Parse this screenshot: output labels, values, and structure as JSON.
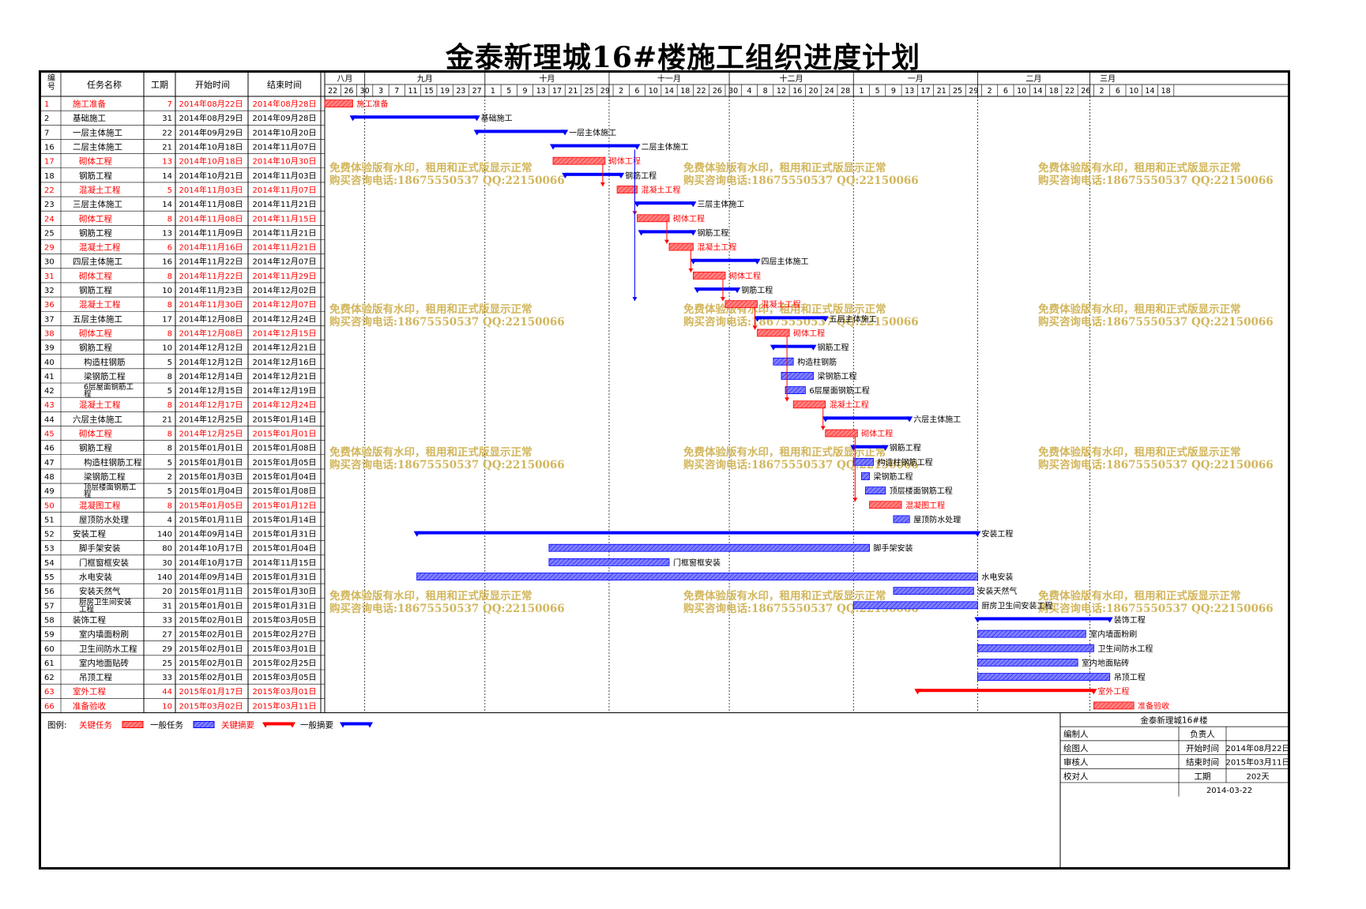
{
  "title": "金泰新理城16#楼施工组织进度计划",
  "header": {
    "no": "编号",
    "name": "任务名称",
    "dur": "工期",
    "start": "开始时间",
    "end": "结束时间"
  },
  "colors": {
    "critical": "#ff0000",
    "normal": "#0000ff",
    "critical_fill": "#ff8080",
    "normal_fill": "#8080ff",
    "watermark": "#d2b65c"
  },
  "timeline": {
    "months": [
      "八月",
      "九月",
      "十月",
      "十一月",
      "十二月",
      "一月",
      "二月",
      "三月"
    ],
    "day_ticks": [
      "22",
      "26",
      "30",
      "3",
      "7",
      "11",
      "15",
      "19",
      "23",
      "27",
      "1",
      "5",
      "9",
      "13",
      "17",
      "21",
      "25",
      "29",
      "2",
      "6",
      "10",
      "14",
      "18",
      "22",
      "26",
      "30",
      "4",
      "8",
      "12",
      "16",
      "20",
      "24",
      "28",
      "1",
      "5",
      "9",
      "13",
      "17",
      "21",
      "25",
      "29",
      "2",
      "6",
      "10",
      "14",
      "18",
      "22",
      "26",
      "2",
      "6",
      "10",
      "14",
      "18"
    ]
  },
  "chart_data": {
    "type": "gantt",
    "title": "金泰新理城16#楼施工组织进度计划",
    "columns": [
      "编号",
      "任务名称",
      "工期",
      "开始时间",
      "结束时间"
    ],
    "tasks": [
      {
        "id": "1",
        "name": "施工准备",
        "dur": "7",
        "start": "2014年08月22日",
        "end": "2014年08月28日",
        "kind": "critical-task",
        "label": "施工准备"
      },
      {
        "id": "2",
        "name": "基础施工",
        "dur": "31",
        "start": "2014年08月29日",
        "end": "2014年09月28日",
        "kind": "summary",
        "label": "基础施工"
      },
      {
        "id": "7",
        "name": "一层主体施工",
        "dur": "22",
        "start": "2014年09月29日",
        "end": "2014年10月20日",
        "kind": "summary",
        "label": "一层主体施工"
      },
      {
        "id": "16",
        "name": "二层主体施工",
        "dur": "21",
        "start": "2014年10月18日",
        "end": "2014年11月07日",
        "kind": "summary",
        "label": "二层主体施工"
      },
      {
        "id": "17",
        "name": "砌体工程",
        "dur": "13",
        "start": "2014年10月18日",
        "end": "2014年10月30日",
        "kind": "critical-task",
        "label": "砌体工程",
        "indent": true
      },
      {
        "id": "18",
        "name": "钢筋工程",
        "dur": "14",
        "start": "2014年10月21日",
        "end": "2014年11月03日",
        "kind": "summary",
        "label": "钢筋工程",
        "indent": true
      },
      {
        "id": "22",
        "name": "混凝土工程",
        "dur": "5",
        "start": "2014年11月03日",
        "end": "2014年11月07日",
        "kind": "critical-task",
        "label": "混凝土工程",
        "indent": true
      },
      {
        "id": "23",
        "name": "三层主体施工",
        "dur": "14",
        "start": "2014年11月08日",
        "end": "2014年11月21日",
        "kind": "summary",
        "label": "三层主体施工"
      },
      {
        "id": "24",
        "name": "砌体工程",
        "dur": "8",
        "start": "2014年11月08日",
        "end": "2014年11月15日",
        "kind": "critical-task",
        "label": "砌体工程",
        "indent": true
      },
      {
        "id": "25",
        "name": "钢筋工程",
        "dur": "13",
        "start": "2014年11月09日",
        "end": "2014年11月21日",
        "kind": "summary",
        "label": "钢筋工程",
        "indent": true
      },
      {
        "id": "29",
        "name": "混凝土工程",
        "dur": "6",
        "start": "2014年11月16日",
        "end": "2014年11月21日",
        "kind": "critical-task",
        "label": "混凝土工程",
        "indent": true
      },
      {
        "id": "30",
        "name": "四层主体施工",
        "dur": "16",
        "start": "2014年11月22日",
        "end": "2014年12月07日",
        "kind": "summary",
        "label": "四层主体施工"
      },
      {
        "id": "31",
        "name": "砌体工程",
        "dur": "8",
        "start": "2014年11月22日",
        "end": "2014年11月29日",
        "kind": "critical-task",
        "label": "砌体工程",
        "indent": true
      },
      {
        "id": "32",
        "name": "钢筋工程",
        "dur": "10",
        "start": "2014年11月23日",
        "end": "2014年12月02日",
        "kind": "summary",
        "label": "钢筋工程",
        "indent": true
      },
      {
        "id": "36",
        "name": "混凝土工程",
        "dur": "8",
        "start": "2014年11月30日",
        "end": "2014年12月07日",
        "kind": "critical-task",
        "label": "混凝土工程",
        "indent": true
      },
      {
        "id": "37",
        "name": "五层主体施工",
        "dur": "17",
        "start": "2014年12月08日",
        "end": "2014年12月24日",
        "kind": "summary",
        "label": "五层主体施工"
      },
      {
        "id": "38",
        "name": "砌体工程",
        "dur": "8",
        "start": "2014年12月08日",
        "end": "2014年12月15日",
        "kind": "critical-task",
        "label": "砌体工程",
        "indent": true
      },
      {
        "id": "39",
        "name": "钢筋工程",
        "dur": "10",
        "start": "2014年12月12日",
        "end": "2014年12月21日",
        "kind": "summary",
        "label": "钢筋工程",
        "indent": true
      },
      {
        "id": "40",
        "name": "构造柱钢筋",
        "dur": "5",
        "start": "2014年12月12日",
        "end": "2014年12月16日",
        "kind": "task",
        "label": "构造柱钢筋",
        "indent2": true
      },
      {
        "id": "41",
        "name": "梁钢筋工程",
        "dur": "8",
        "start": "2014年12月14日",
        "end": "2014年12月21日",
        "kind": "task",
        "label": "梁钢筋工程",
        "indent2": true
      },
      {
        "id": "42",
        "name": "6层屋面钢筋工程",
        "dur": "5",
        "start": "2014年12月15日",
        "end": "2014年12月19日",
        "kind": "task",
        "label": "6层屋面钢筋工程",
        "indent2": true,
        "wrap": [
          "6层屋面钢筋工",
          "程"
        ]
      },
      {
        "id": "43",
        "name": "混凝土工程",
        "dur": "8",
        "start": "2014年12月17日",
        "end": "2014年12月24日",
        "kind": "critical-task",
        "label": "混凝土工程",
        "indent": true
      },
      {
        "id": "44",
        "name": "六层主体施工",
        "dur": "21",
        "start": "2014年12月25日",
        "end": "2015年01月14日",
        "kind": "summary",
        "label": "六层主体施工"
      },
      {
        "id": "45",
        "name": "砌体工程",
        "dur": "8",
        "start": "2014年12月25日",
        "end": "2015年01月01日",
        "kind": "critical-task",
        "label": "砌体工程",
        "indent": true
      },
      {
        "id": "46",
        "name": "钢筋工程",
        "dur": "8",
        "start": "2015年01月01日",
        "end": "2015年01月08日",
        "kind": "summary",
        "label": "钢筋工程",
        "indent": true
      },
      {
        "id": "47",
        "name": "构造柱钢筋工程",
        "dur": "5",
        "start": "2015年01月01日",
        "end": "2015年01月05日",
        "kind": "task",
        "label": "构造柱钢筋工程",
        "indent2": true
      },
      {
        "id": "48",
        "name": "梁钢筋工程",
        "dur": "2",
        "start": "2015年01月03日",
        "end": "2015年01月04日",
        "kind": "task",
        "label": "梁钢筋工程",
        "indent2": true
      },
      {
        "id": "49",
        "name": "顶层楼面钢筋工程",
        "dur": "5",
        "start": "2015年01月04日",
        "end": "2015年01月08日",
        "kind": "task",
        "label": "顶层楼面钢筋工程",
        "indent2": true,
        "wrap": [
          "顶层楼面钢筋工",
          "程"
        ]
      },
      {
        "id": "50",
        "name": "混凝图工程",
        "dur": "8",
        "start": "2015年01月05日",
        "end": "2015年01月12日",
        "kind": "critical-task",
        "label": "混凝图工程",
        "indent": true
      },
      {
        "id": "51",
        "name": "屋顶防水处理",
        "dur": "4",
        "start": "2015年01月11日",
        "end": "2015年01月14日",
        "kind": "task",
        "label": "屋顶防水处理",
        "indent": true
      },
      {
        "id": "52",
        "name": "安装工程",
        "dur": "140",
        "start": "2014年09月14日",
        "end": "2015年01月31日",
        "kind": "summary",
        "label": "安装工程"
      },
      {
        "id": "53",
        "name": "脚手架安装",
        "dur": "80",
        "start": "2014年10月17日",
        "end": "2015年01月04日",
        "kind": "task",
        "label": "脚手架安装",
        "indent": true
      },
      {
        "id": "54",
        "name": "门框窗框安装",
        "dur": "30",
        "start": "2014年10月17日",
        "end": "2014年11月15日",
        "kind": "task",
        "label": "门框窗框安装",
        "indent": true
      },
      {
        "id": "55",
        "name": "水电安装",
        "dur": "140",
        "start": "2014年09月14日",
        "end": "2015年01月31日",
        "kind": "task",
        "label": "水电安装",
        "indent": true
      },
      {
        "id": "56",
        "name": "安装天然气",
        "dur": "20",
        "start": "2015年01月11日",
        "end": "2015年01月30日",
        "kind": "task",
        "label": "安装天然气",
        "indent": true
      },
      {
        "id": "57",
        "name": "厨房卫生间安装工程",
        "dur": "31",
        "start": "2015年01月01日",
        "end": "2015年01月31日",
        "kind": "task",
        "label": "厨房卫生间安装工程",
        "indent": true,
        "wrap": [
          "厨房卫生间安装",
          "工程"
        ]
      },
      {
        "id": "58",
        "name": "装饰工程",
        "dur": "33",
        "start": "2015年02月01日",
        "end": "2015年03月05日",
        "kind": "summary",
        "label": "装饰工程"
      },
      {
        "id": "59",
        "name": "室内墙面粉刷",
        "dur": "27",
        "start": "2015年02月01日",
        "end": "2015年02月27日",
        "kind": "task",
        "label": "室内墙面粉刷",
        "indent": true
      },
      {
        "id": "60",
        "name": "卫生间防水工程",
        "dur": "29",
        "start": "2015年02月01日",
        "end": "2015年03月01日",
        "kind": "task",
        "label": "卫生间防水工程",
        "indent": true
      },
      {
        "id": "61",
        "name": "室内地面贴砖",
        "dur": "25",
        "start": "2015年02月01日",
        "end": "2015年02月25日",
        "kind": "task",
        "label": "室内地面贴砖",
        "indent": true
      },
      {
        "id": "62",
        "name": "吊顶工程",
        "dur": "33",
        "start": "2015年02月01日",
        "end": "2015年03月05日",
        "kind": "task",
        "label": "吊顶工程",
        "indent": true
      },
      {
        "id": "63",
        "name": "室外工程",
        "dur": "44",
        "start": "2015年01月17日",
        "end": "2015年03月01日",
        "kind": "critical-summary",
        "label": "室外工程"
      },
      {
        "id": "66",
        "name": "准备验收",
        "dur": "10",
        "start": "2015年03月02日",
        "end": "2015年03月11日",
        "kind": "critical-task",
        "label": "准备验收"
      }
    ],
    "legend": [
      "关键任务",
      "一般任务",
      "关键摘要",
      "一般摘要"
    ]
  },
  "watermark": {
    "line1": "免费体验版有水印，租用和正式版显示正常",
    "line2": "购买咨询电话:18675550537 QQ:22150066"
  },
  "legend": {
    "label": "图例:",
    "critical_task": "关键任务",
    "normal_task": "一般任务",
    "critical_summary": "关键摘要",
    "normal_summary": "一般摘要"
  },
  "info": {
    "project": "金泰新理城16#楼",
    "editor_label": "编制人",
    "owner_label": "负责人",
    "drawer_label": "绘图人",
    "start_label": "开始时间",
    "start_value": "2014年08月22日",
    "reviewer_label": "审核人",
    "end_label": "结束时间",
    "end_value": "2015年03月11日",
    "checker_label": "校对人",
    "dur_label": "工期",
    "dur_value": "202天",
    "date": "2014-03-22"
  }
}
